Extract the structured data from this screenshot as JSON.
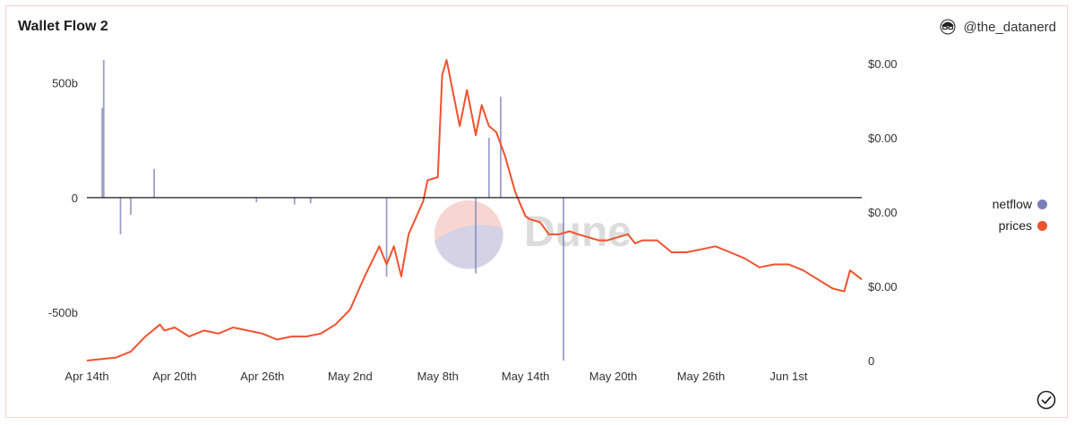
{
  "header": {
    "title": "Wallet Flow 2",
    "author": "@the_datanerd"
  },
  "watermark": {
    "text": "Dune"
  },
  "colors": {
    "netflow": "#7b7fb8",
    "prices": "#f0522e",
    "zero_line": "#1a1a1a",
    "axis_text": "#333333"
  },
  "chart_data": {
    "type": "line",
    "title": "Wallet Flow 2",
    "x_ticks": [
      "Apr 14th",
      "Apr 20th",
      "Apr 26th",
      "May 2nd",
      "May 8th",
      "May 14th",
      "May 20th",
      "May 26th",
      "Jun 1st"
    ],
    "x_range_days": [
      0,
      53
    ],
    "y_left": {
      "ticks": [
        "500b",
        "0",
        "-500b"
      ],
      "tick_values": [
        500,
        0,
        -500
      ],
      "range": [
        -710,
        600
      ],
      "unit": "b"
    },
    "y_right": {
      "ticks": [
        "$0.00",
        "$0.00",
        "$0.00",
        "$0.00",
        "0"
      ],
      "range": [
        0,
        100
      ]
    },
    "legend": {
      "placement": "right",
      "entries": [
        "netflow",
        "prices"
      ]
    },
    "series": [
      {
        "name": "netflow",
        "type": "bar",
        "axis": "left",
        "points": [
          [
            1.05,
            390
          ],
          [
            1.15,
            600
          ],
          [
            2.3,
            -160
          ],
          [
            3.0,
            -75
          ],
          [
            4.6,
            125
          ],
          [
            11.6,
            -20
          ],
          [
            14.2,
            -30
          ],
          [
            15.3,
            -25
          ],
          [
            20.5,
            -345
          ],
          [
            26.6,
            -330
          ],
          [
            27.5,
            260
          ],
          [
            28.3,
            440
          ],
          [
            32.6,
            -710
          ]
        ]
      },
      {
        "name": "prices",
        "type": "line",
        "axis": "right",
        "points": [
          [
            0,
            0
          ],
          [
            2,
            1
          ],
          [
            3,
            3
          ],
          [
            4,
            8
          ],
          [
            5,
            12
          ],
          [
            5.3,
            10
          ],
          [
            6,
            11
          ],
          [
            7,
            8
          ],
          [
            8,
            10
          ],
          [
            9,
            9
          ],
          [
            10,
            11
          ],
          [
            11,
            10
          ],
          [
            12,
            9
          ],
          [
            13,
            7
          ],
          [
            14,
            8
          ],
          [
            15,
            8
          ],
          [
            16,
            9
          ],
          [
            17,
            12
          ],
          [
            18,
            17
          ],
          [
            19,
            28
          ],
          [
            20,
            38
          ],
          [
            20.5,
            32
          ],
          [
            21,
            38
          ],
          [
            21.5,
            28
          ],
          [
            22,
            42
          ],
          [
            23,
            53
          ],
          [
            23.3,
            60
          ],
          [
            24,
            61
          ],
          [
            24.3,
            95
          ],
          [
            24.6,
            100
          ],
          [
            25.5,
            78
          ],
          [
            26,
            90
          ],
          [
            26.6,
            75
          ],
          [
            27,
            85
          ],
          [
            27.5,
            78
          ],
          [
            28,
            76
          ],
          [
            28.6,
            68
          ],
          [
            29.3,
            56
          ],
          [
            30,
            48
          ],
          [
            30.3,
            47
          ],
          [
            31,
            46
          ],
          [
            31.6,
            42
          ],
          [
            32.3,
            42
          ],
          [
            33,
            43
          ],
          [
            33.6,
            42
          ],
          [
            34.3,
            41
          ],
          [
            35,
            40
          ],
          [
            35.6,
            40
          ],
          [
            36.3,
            41
          ],
          [
            37,
            42
          ],
          [
            37.5,
            39
          ],
          [
            38,
            40
          ],
          [
            39,
            40
          ],
          [
            40,
            36
          ],
          [
            41,
            36
          ],
          [
            42,
            37
          ],
          [
            43,
            38
          ],
          [
            44,
            36
          ],
          [
            45,
            34
          ],
          [
            46,
            31
          ],
          [
            47,
            32
          ],
          [
            48,
            32
          ],
          [
            49,
            30
          ],
          [
            50,
            27
          ],
          [
            51,
            24
          ],
          [
            51.8,
            23
          ],
          [
            52.2,
            30
          ],
          [
            53,
            27
          ]
        ]
      }
    ]
  }
}
